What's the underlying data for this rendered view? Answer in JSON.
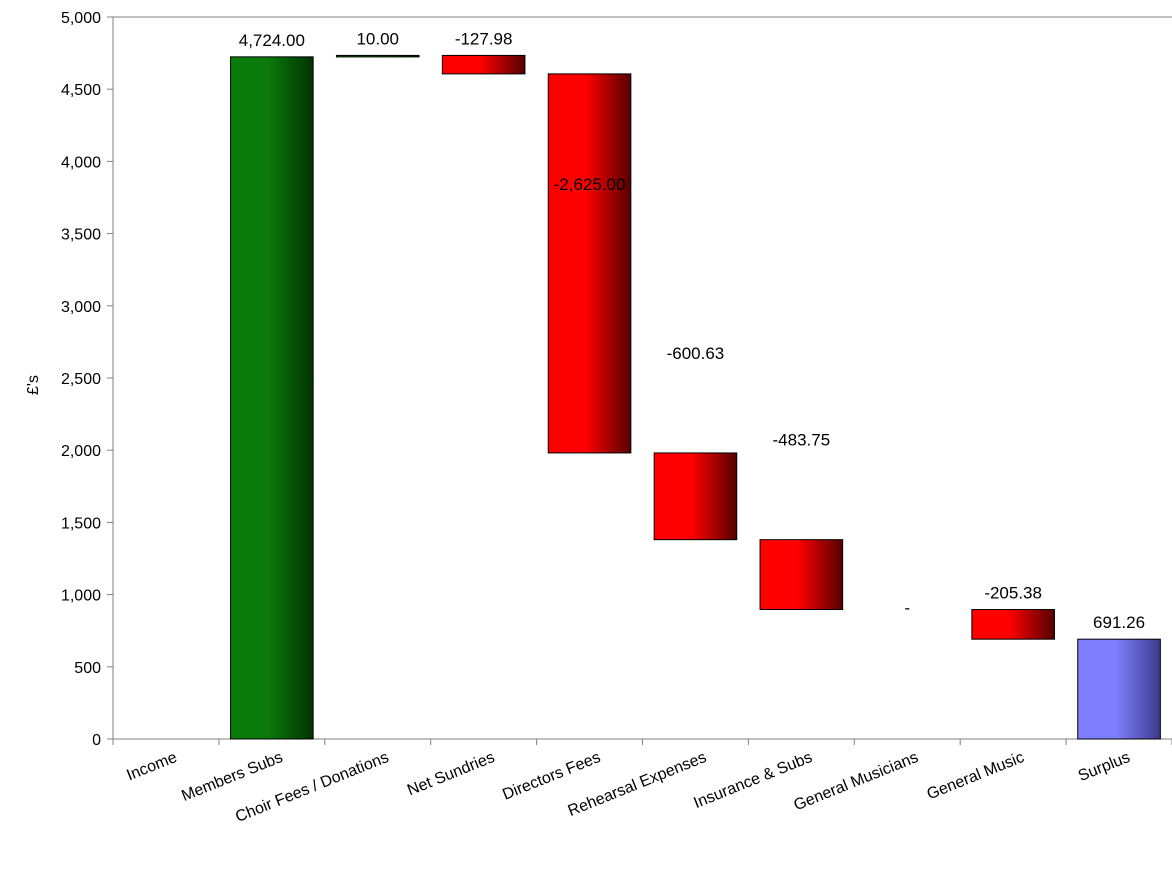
{
  "chart_data": {
    "type": "bar",
    "subtype": "waterfall",
    "title": "",
    "xlabel": "",
    "ylabel": "£'s",
    "ylim": [
      0,
      5000
    ],
    "yticks": [
      0,
      500,
      1000,
      1500,
      2000,
      2500,
      3000,
      3500,
      4000,
      4500,
      5000
    ],
    "ytick_labels": [
      "0",
      "500",
      "1,000",
      "1,500",
      "2,000",
      "2,500",
      "3,000",
      "3,500",
      "4,000",
      "4,500",
      "5,000"
    ],
    "grid": false,
    "legend": "none",
    "categories": [
      "Income",
      "Members Subs",
      "Choir Fees / Donations",
      "Net Sundries",
      "Directors Fees",
      "Rehearsal Expenses",
      "Insurance & Subs",
      "General Musicians",
      "General Music",
      "Surplus"
    ],
    "values": [
      null,
      4724.0,
      10.0,
      -127.98,
      -2625.0,
      -600.63,
      -483.75,
      0,
      -205.38,
      691.26
    ],
    "data_labels": [
      "",
      "4,724.00",
      "10.00",
      "-127.98",
      "-2,625.00",
      "-600.63",
      "-483.75",
      "-",
      "-205.38",
      "691.26"
    ],
    "bar_kinds": [
      "none",
      "income",
      "income",
      "expense",
      "expense",
      "expense",
      "expense",
      "expense",
      "expense",
      "total"
    ],
    "colors": {
      "income": "#0a7a0a",
      "income_dark": "#003300",
      "expense": "#ff0000",
      "expense_dark": "#550000",
      "total": "#8080ff",
      "total_dark": "#3a3a8c",
      "axis": "#808080"
    }
  }
}
